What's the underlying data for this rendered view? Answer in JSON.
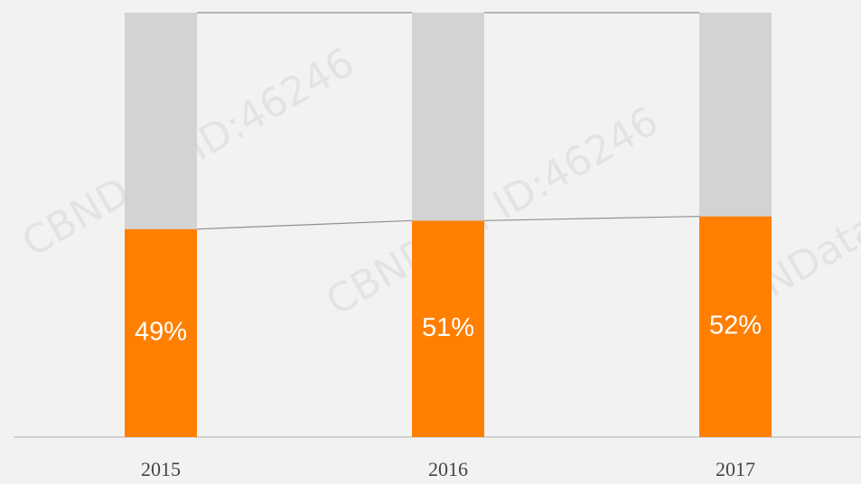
{
  "chart_data": {
    "type": "stacked_bar",
    "categories": [
      "2015",
      "2016",
      "2017"
    ],
    "series": [
      {
        "color": "#ff7f00",
        "values": [
          49,
          51,
          52
        ],
        "value_labels": [
          "49%",
          "51%",
          "52%"
        ]
      },
      {
        "color": "#d3d3d3",
        "values": [
          51,
          49,
          48
        ]
      }
    ],
    "ylim": [
      0,
      100
    ],
    "watermark": "CBNData ID:46246"
  }
}
